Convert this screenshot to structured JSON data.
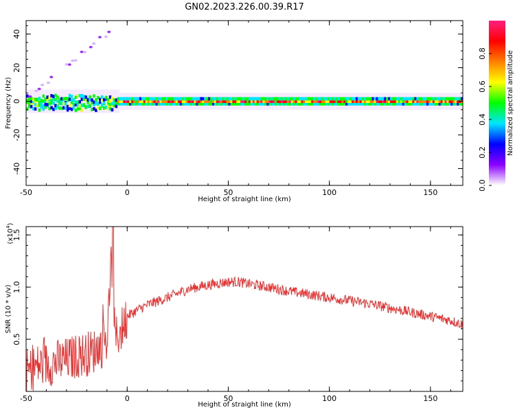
{
  "figure": {
    "title": "GN02.2023.226.00.39.R17"
  },
  "chart_data": [
    {
      "type": "heatmap",
      "xlabel": "Height of straight line (km)",
      "ylabel": "Frequency (Hz)",
      "xlim": [
        -50,
        166
      ],
      "ylim": [
        -50,
        48
      ],
      "x_ticks": [
        "-50",
        "0",
        "50",
        "100",
        "150"
      ],
      "y_ticks": [
        "40",
        "20",
        "0",
        "-20",
        "-40"
      ],
      "colorbar": {
        "label": "Normalized spectral amplitude",
        "range": [
          0,
          1
        ],
        "ticks": [
          "0.0",
          "0.2",
          "0.4",
          "0.6",
          "0.8"
        ],
        "colors": [
          "#ffffff",
          "#8b00ff",
          "#0000ff",
          "#00e5ff",
          "#00ff00",
          "#ffff00",
          "#ff8000",
          "#ff0000",
          "#ff2080"
        ]
      },
      "grid": false
    },
    {
      "type": "line",
      "xlabel": "Height of straight line (km)",
      "ylabel": "SNR (10 * v/v)",
      "scale_label": "(x10",
      "scale_exp": "4",
      "scale_close": ")",
      "xlim": [
        -50,
        166
      ],
      "ylim": [
        0,
        1.58
      ],
      "x_ticks": [
        "-50",
        "0",
        "50",
        "100",
        "150"
      ],
      "y_ticks": [
        "1.5",
        "1.0",
        "0.5"
      ],
      "series": [
        {
          "color": "#e83030",
          "x": [
            -50,
            -45,
            -40,
            -35,
            -30,
            -25,
            -20,
            -15,
            -10,
            -8,
            -6,
            -3,
            0,
            5,
            10,
            20,
            30,
            40,
            50,
            55,
            60,
            70,
            80,
            90,
            100,
            110,
            120,
            130,
            140,
            150,
            160,
            166
          ],
          "values": [
            0.18,
            0.24,
            0.26,
            0.28,
            0.3,
            0.34,
            0.36,
            0.4,
            0.48,
            1.2,
            0.5,
            0.58,
            0.72,
            0.78,
            0.83,
            0.9,
            0.98,
            1.02,
            1.05,
            1.05,
            1.03,
            1.0,
            0.96,
            0.93,
            0.9,
            0.87,
            0.84,
            0.8,
            0.76,
            0.72,
            0.68,
            0.64
          ]
        }
      ],
      "grid": false
    }
  ]
}
